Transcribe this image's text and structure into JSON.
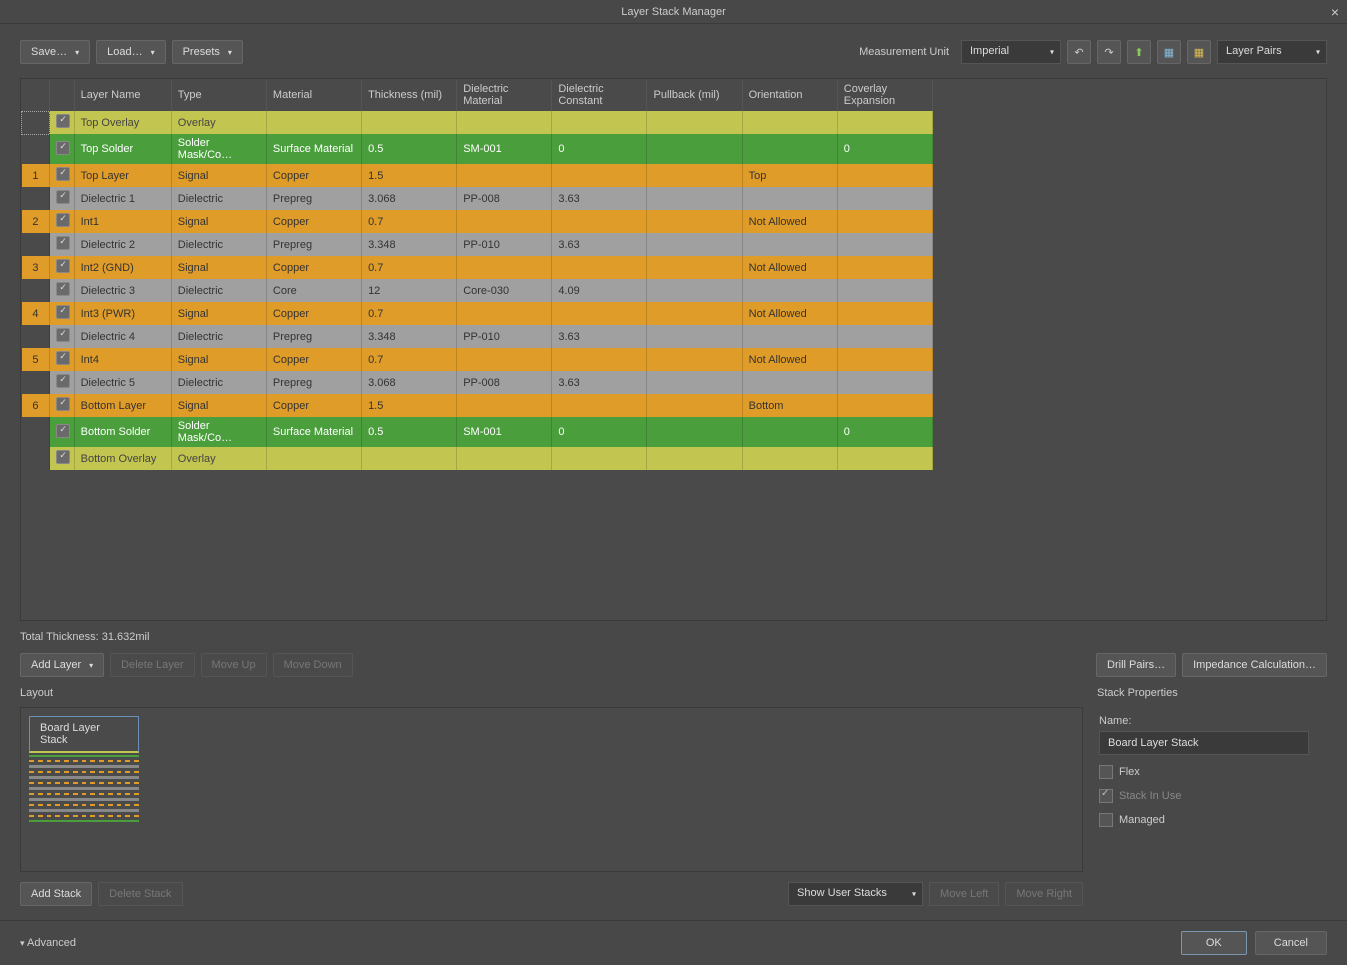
{
  "window": {
    "title": "Layer Stack Manager"
  },
  "toolbar": {
    "save": "Save…",
    "load": "Load…",
    "presets": "Presets",
    "measurement_label": "Measurement Unit",
    "measurement_value": "Imperial",
    "layer_pairs": "Layer Pairs"
  },
  "columns": [
    "",
    "",
    "Layer Name",
    "Type",
    "Material",
    "Thickness (mil)",
    "Dielectric Material",
    "Dielectric Constant",
    "Pullback (mil)",
    "Orientation",
    "Coverlay Expansion"
  ],
  "rows": [
    {
      "num": "",
      "style": "overlay",
      "selected": true,
      "name": "Top Overlay",
      "type": "Overlay",
      "material": "",
      "thickness": "",
      "dmat": "",
      "dconst": "",
      "pullback": "",
      "orient": "",
      "cover": ""
    },
    {
      "num": "",
      "style": "solder",
      "name": "Top Solder",
      "type": "Solder Mask/Co…",
      "material": "Surface Material",
      "thickness": "0.5",
      "dmat": "SM-001",
      "dconst": "0",
      "pullback": "",
      "orient": "",
      "cover": "0"
    },
    {
      "num": "1",
      "style": "signal",
      "name": "Top Layer",
      "type": "Signal",
      "material": "Copper",
      "thickness": "1.5",
      "dmat": "",
      "dconst": "",
      "pullback": "",
      "orient": "Top",
      "cover": ""
    },
    {
      "num": "",
      "style": "dielectric",
      "name": "Dielectric 1",
      "type": "Dielectric",
      "material": "Prepreg",
      "thickness": "3.068",
      "dmat": "PP-008",
      "dconst": "3.63",
      "pullback": "",
      "orient": "",
      "cover": ""
    },
    {
      "num": "2",
      "style": "signal",
      "name": "Int1",
      "type": "Signal",
      "material": "Copper",
      "thickness": "0.7",
      "dmat": "",
      "dconst": "",
      "pullback": "",
      "orient": "Not Allowed",
      "cover": ""
    },
    {
      "num": "",
      "style": "dielectric",
      "name": "Dielectric 2",
      "type": "Dielectric",
      "material": "Prepreg",
      "thickness": "3.348",
      "dmat": "PP-010",
      "dconst": "3.63",
      "pullback": "",
      "orient": "",
      "cover": ""
    },
    {
      "num": "3",
      "style": "signal",
      "name": "Int2 (GND)",
      "type": "Signal",
      "material": "Copper",
      "thickness": "0.7",
      "dmat": "",
      "dconst": "",
      "pullback": "",
      "orient": "Not Allowed",
      "cover": ""
    },
    {
      "num": "",
      "style": "dielectric",
      "name": "Dielectric 3",
      "type": "Dielectric",
      "material": "Core",
      "thickness": "12",
      "dmat": "Core-030",
      "dconst": "4.09",
      "pullback": "",
      "orient": "",
      "cover": ""
    },
    {
      "num": "4",
      "style": "signal",
      "name": "Int3 (PWR)",
      "type": "Signal",
      "material": "Copper",
      "thickness": "0.7",
      "dmat": "",
      "dconst": "",
      "pullback": "",
      "orient": "Not Allowed",
      "cover": ""
    },
    {
      "num": "",
      "style": "dielectric",
      "name": "Dielectric 4",
      "type": "Dielectric",
      "material": "Prepreg",
      "thickness": "3.348",
      "dmat": "PP-010",
      "dconst": "3.63",
      "pullback": "",
      "orient": "",
      "cover": ""
    },
    {
      "num": "5",
      "style": "signal",
      "name": "Int4",
      "type": "Signal",
      "material": "Copper",
      "thickness": "0.7",
      "dmat": "",
      "dconst": "",
      "pullback": "",
      "orient": "Not Allowed",
      "cover": ""
    },
    {
      "num": "",
      "style": "dielectric",
      "name": "Dielectric 5",
      "type": "Dielectric",
      "material": "Prepreg",
      "thickness": "3.068",
      "dmat": "PP-008",
      "dconst": "3.63",
      "pullback": "",
      "orient": "",
      "cover": ""
    },
    {
      "num": "6",
      "style": "signal",
      "name": "Bottom Layer",
      "type": "Signal",
      "material": "Copper",
      "thickness": "1.5",
      "dmat": "",
      "dconst": "",
      "pullback": "",
      "orient": "Bottom",
      "cover": ""
    },
    {
      "num": "",
      "style": "solder",
      "name": "Bottom Solder",
      "type": "Solder Mask/Co…",
      "material": "Surface Material",
      "thickness": "0.5",
      "dmat": "SM-001",
      "dconst": "0",
      "pullback": "",
      "orient": "",
      "cover": "0"
    },
    {
      "num": "",
      "style": "overlay",
      "name": "Bottom Overlay",
      "type": "Overlay",
      "material": "",
      "thickness": "",
      "dmat": "",
      "dconst": "",
      "pullback": "",
      "orient": "",
      "cover": ""
    }
  ],
  "total_thickness": "Total Thickness: 31.632mil",
  "actions": {
    "add_layer": "Add Layer",
    "delete_layer": "Delete Layer",
    "move_up": "Move Up",
    "move_down": "Move Down",
    "drill_pairs": "Drill Pairs…",
    "impedance": "Impedance Calculation…"
  },
  "layout": {
    "label": "Layout",
    "stack_name": "Board Layer Stack",
    "add_stack": "Add Stack",
    "delete_stack": "Delete Stack",
    "show_stacks": "Show User Stacks",
    "move_left": "Move Left",
    "move_right": "Move Right"
  },
  "props": {
    "label": "Stack Properties",
    "name_label": "Name:",
    "name_value": "Board Layer Stack",
    "flex": "Flex",
    "stack_in_use": "Stack In Use",
    "managed": "Managed"
  },
  "footer": {
    "advanced": "Advanced",
    "ok": "OK",
    "cancel": "Cancel"
  },
  "colors": {
    "overlay": "#c2c54f",
    "solder": "#4a9e3c",
    "signal": "#e09c28",
    "dielectric": "#a0a0a0",
    "bg": "#484848"
  }
}
